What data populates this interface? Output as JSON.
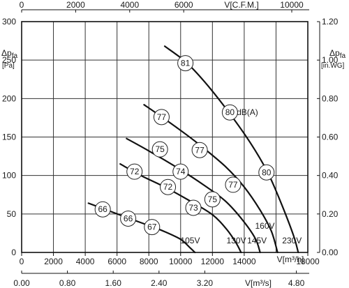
{
  "chart_data": {
    "type": "line",
    "x": {
      "label": "V[m³/h]",
      "range": [
        0,
        18000
      ],
      "ticks": [
        0,
        2000,
        4000,
        6000,
        8000,
        10000,
        12000,
        14000,
        18000
      ],
      "tick_labels": [
        "0",
        "2000",
        "4000",
        "6000",
        "8000",
        "10000",
        "12000",
        "14000",
        "18000"
      ]
    },
    "x_secondary_bottom": {
      "label": "V[m³/s]",
      "tick_labels": [
        "0.00",
        "0.80",
        "1.60",
        "2.40",
        "3.20",
        "4.80"
      ],
      "tick_values_m3h": [
        0,
        2880,
        5760,
        8640,
        11520,
        17280
      ]
    },
    "x_secondary_top": {
      "label": "V[C.F.M.]",
      "tick_labels": [
        "0",
        "2000",
        "4000",
        "6000",
        "10000"
      ],
      "tick_values_m3h": [
        0,
        3398,
        6796,
        10194,
        16990
      ]
    },
    "y": {
      "label_main": "Δp",
      "label_sub": "fa",
      "unit": "[Pa]",
      "range": [
        0,
        300
      ],
      "ticks": [
        0,
        50,
        100,
        150,
        200,
        250,
        300
      ],
      "tick_labels": [
        "0",
        "50",
        "100",
        "150",
        "200",
        "250",
        "300"
      ]
    },
    "y_secondary": {
      "label_main": "Δp",
      "label_sub": "fa",
      "unit": "[in.WG]",
      "tick_labels": [
        "0.00",
        "0.20",
        "0.40",
        "0.60",
        "0.80",
        "1.00",
        "1.20"
      ],
      "tick_values_pa": [
        0,
        50,
        100,
        150,
        200,
        250,
        300
      ]
    },
    "series": [
      {
        "name": "105V",
        "label_at": [
          10600,
          12
        ],
        "points": [
          [
            4200,
            64
          ],
          [
            5500,
            54
          ],
          [
            6800,
            44
          ],
          [
            8000,
            35
          ],
          [
            9000,
            27
          ],
          [
            10000,
            17
          ],
          [
            10600,
            6
          ],
          [
            10900,
            0
          ]
        ]
      },
      {
        "name": "130V",
        "label_at": [
          13500,
          12
        ],
        "points": [
          [
            6200,
            115
          ],
          [
            7500,
            100
          ],
          [
            9000,
            85
          ],
          [
            10500,
            68
          ],
          [
            12000,
            49
          ],
          [
            12900,
            30
          ],
          [
            13500,
            12
          ],
          [
            13800,
            0
          ]
        ]
      },
      {
        "name": "145V",
        "label_at": [
          14800,
          12
        ],
        "points": [
          [
            6600,
            148
          ],
          [
            8000,
            132
          ],
          [
            9800,
            110
          ],
          [
            11500,
            87
          ],
          [
            12800,
            67
          ],
          [
            13900,
            42
          ],
          [
            14700,
            18
          ],
          [
            15000,
            0
          ]
        ]
      },
      {
        "name": "160V",
        "label_at": [
          15300,
          31
        ],
        "points": [
          [
            7700,
            192
          ],
          [
            9300,
            169
          ],
          [
            11000,
            143
          ],
          [
            12800,
            112
          ],
          [
            14000,
            85
          ],
          [
            15000,
            55
          ],
          [
            15700,
            28
          ],
          [
            16100,
            0
          ]
        ]
      },
      {
        "name": "230V",
        "label_at": [
          17000,
          12
        ],
        "points": [
          [
            9000,
            268
          ],
          [
            10300,
            248
          ],
          [
            11500,
            222
          ],
          [
            13000,
            183
          ],
          [
            14400,
            142
          ],
          [
            15500,
            103
          ],
          [
            16400,
            60
          ],
          [
            17100,
            22
          ],
          [
            17400,
            0
          ]
        ]
      }
    ],
    "annotations": [
      {
        "text": "81",
        "x": 10300,
        "y": 246
      },
      {
        "text": "80",
        "x": 13100,
        "y": 182
      },
      {
        "text": "80",
        "x": 15400,
        "y": 104
      },
      {
        "text": "77",
        "x": 8800,
        "y": 176
      },
      {
        "text": "77",
        "x": 11200,
        "y": 133
      },
      {
        "text": "77",
        "x": 13300,
        "y": 88
      },
      {
        "text": "75",
        "x": 8700,
        "y": 134
      },
      {
        "text": "75",
        "x": 12000,
        "y": 69
      },
      {
        "text": "74",
        "x": 10000,
        "y": 105
      },
      {
        "text": "73",
        "x": 10800,
        "y": 58
      },
      {
        "text": "72",
        "x": 7100,
        "y": 105
      },
      {
        "text": "72",
        "x": 9200,
        "y": 85
      },
      {
        "text": "67",
        "x": 8200,
        "y": 33
      },
      {
        "text": "66",
        "x": 5100,
        "y": 56
      },
      {
        "text": "66",
        "x": 6700,
        "y": 44
      }
    ],
    "unit_annotation": {
      "text": "dB(A)",
      "x": 14200,
      "y": 182
    }
  }
}
